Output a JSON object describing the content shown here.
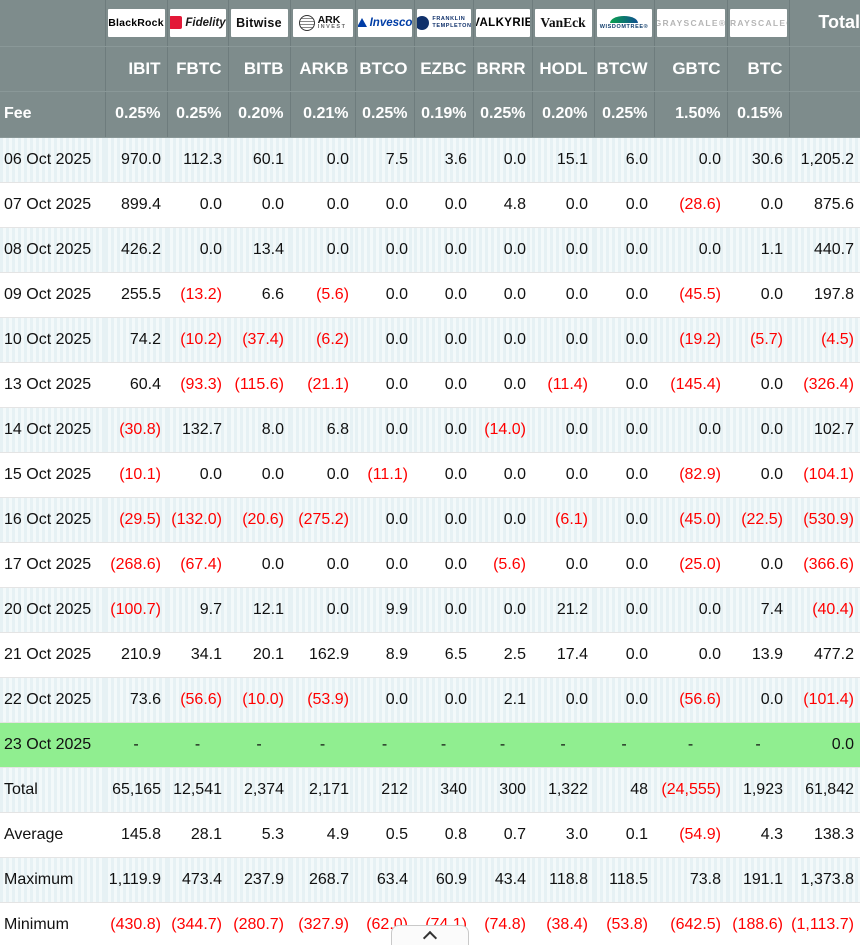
{
  "colors": {
    "header_bg": "#7e8c8c",
    "negative_text": "#ff0000",
    "highlight_row_bg": "#90ee90",
    "stripe_row_bg": "#e6f1f4"
  },
  "chart_data": {
    "type": "table",
    "total_label": "Total",
    "fee_label": "Fee",
    "providers": [
      {
        "name": "BlackRock",
        "style": "blackrock",
        "text": "BlackRock"
      },
      {
        "name": "Fidelity",
        "style": "fidelity",
        "text": "Fidelity"
      },
      {
        "name": "Bitwise",
        "style": "bitwise",
        "text": "Bitwise"
      },
      {
        "name": "ARK Invest",
        "style": "ark",
        "text": "ARK",
        "sub": "INVEST"
      },
      {
        "name": "Invesco",
        "style": "invesco",
        "text": "Invesco"
      },
      {
        "name": "Franklin Templeton",
        "style": "franklin",
        "text": "FRANKLIN TEMPLETON"
      },
      {
        "name": "Valkyrie",
        "style": "valkyrie",
        "text": "VALKYRIE"
      },
      {
        "name": "VanEck",
        "style": "vaneck",
        "text": "VanEck"
      },
      {
        "name": "WisdomTree",
        "style": "wisdomtree",
        "text": "WISDOMTREE®"
      },
      {
        "name": "Grayscale",
        "style": "grayscale",
        "text": "GRAYSCALE®"
      },
      {
        "name": "Grayscale BTC",
        "style": "grayscale",
        "text": "GRAYSCALE®"
      }
    ],
    "columns": [
      "IBIT",
      "FBTC",
      "BITB",
      "ARKB",
      "BTCO",
      "EZBC",
      "BRRR",
      "HODL",
      "BTCW",
      "GBTC",
      "BTC"
    ],
    "fees": [
      "0.25%",
      "0.25%",
      "0.20%",
      "0.21%",
      "0.25%",
      "0.19%",
      "0.25%",
      "0.20%",
      "0.25%",
      "1.50%",
      "0.15%"
    ],
    "rows": [
      {
        "label": "06 Oct 2025",
        "values": [
          "970.0",
          "112.3",
          "60.1",
          "0.0",
          "7.5",
          "3.6",
          "0.0",
          "15.1",
          "6.0",
          "0.0",
          "30.6"
        ],
        "total": "1,205.2"
      },
      {
        "label": "07 Oct 2025",
        "values": [
          "899.4",
          "0.0",
          "0.0",
          "0.0",
          "0.0",
          "0.0",
          "4.8",
          "0.0",
          "0.0",
          "(28.6)",
          "0.0"
        ],
        "total": "875.6"
      },
      {
        "label": "08 Oct 2025",
        "values": [
          "426.2",
          "0.0",
          "13.4",
          "0.0",
          "0.0",
          "0.0",
          "0.0",
          "0.0",
          "0.0",
          "0.0",
          "1.1"
        ],
        "total": "440.7"
      },
      {
        "label": "09 Oct 2025",
        "values": [
          "255.5",
          "(13.2)",
          "6.6",
          "(5.6)",
          "0.0",
          "0.0",
          "0.0",
          "0.0",
          "0.0",
          "(45.5)",
          "0.0"
        ],
        "total": "197.8"
      },
      {
        "label": "10 Oct 2025",
        "values": [
          "74.2",
          "(10.2)",
          "(37.4)",
          "(6.2)",
          "0.0",
          "0.0",
          "0.0",
          "0.0",
          "0.0",
          "(19.2)",
          "(5.7)"
        ],
        "total": "(4.5)"
      },
      {
        "label": "13 Oct 2025",
        "values": [
          "60.4",
          "(93.3)",
          "(115.6)",
          "(21.1)",
          "0.0",
          "0.0",
          "0.0",
          "(11.4)",
          "0.0",
          "(145.4)",
          "0.0"
        ],
        "total": "(326.4)"
      },
      {
        "label": "14 Oct 2025",
        "values": [
          "(30.8)",
          "132.7",
          "8.0",
          "6.8",
          "0.0",
          "0.0",
          "(14.0)",
          "0.0",
          "0.0",
          "0.0",
          "0.0"
        ],
        "total": "102.7"
      },
      {
        "label": "15 Oct 2025",
        "values": [
          "(10.1)",
          "0.0",
          "0.0",
          "0.0",
          "(11.1)",
          "0.0",
          "0.0",
          "0.0",
          "0.0",
          "(82.9)",
          "0.0"
        ],
        "total": "(104.1)"
      },
      {
        "label": "16 Oct 2025",
        "values": [
          "(29.5)",
          "(132.0)",
          "(20.6)",
          "(275.2)",
          "0.0",
          "0.0",
          "0.0",
          "(6.1)",
          "0.0",
          "(45.0)",
          "(22.5)"
        ],
        "total": "(530.9)"
      },
      {
        "label": "17 Oct 2025",
        "values": [
          "(268.6)",
          "(67.4)",
          "0.0",
          "0.0",
          "0.0",
          "0.0",
          "(5.6)",
          "0.0",
          "0.0",
          "(25.0)",
          "0.0"
        ],
        "total": "(366.6)"
      },
      {
        "label": "20 Oct 2025",
        "values": [
          "(100.7)",
          "9.7",
          "12.1",
          "0.0",
          "9.9",
          "0.0",
          "0.0",
          "21.2",
          "0.0",
          "0.0",
          "7.4"
        ],
        "total": "(40.4)"
      },
      {
        "label": "21 Oct 2025",
        "values": [
          "210.9",
          "34.1",
          "20.1",
          "162.9",
          "8.9",
          "6.5",
          "2.5",
          "17.4",
          "0.0",
          "0.0",
          "13.9"
        ],
        "total": "477.2"
      },
      {
        "label": "22 Oct 2025",
        "values": [
          "73.6",
          "(56.6)",
          "(10.0)",
          "(53.9)",
          "0.0",
          "0.0",
          "2.1",
          "0.0",
          "0.0",
          "(56.6)",
          "0.0"
        ],
        "total": "(101.4)"
      },
      {
        "label": "23 Oct 2025",
        "values": [
          "-",
          "-",
          "-",
          "-",
          "-",
          "-",
          "-",
          "-",
          "-",
          "-",
          "-"
        ],
        "total": "0.0",
        "highlight": true
      }
    ],
    "summary_rows": [
      {
        "label": "Total",
        "values": [
          "65,165",
          "12,541",
          "2,374",
          "2,171",
          "212",
          "340",
          "300",
          "1,322",
          "48",
          "(24,555)",
          "1,923"
        ],
        "total": "61,842"
      },
      {
        "label": "Average",
        "values": [
          "145.8",
          "28.1",
          "5.3",
          "4.9",
          "0.5",
          "0.8",
          "0.7",
          "3.0",
          "0.1",
          "(54.9)",
          "4.3"
        ],
        "total": "138.3"
      },
      {
        "label": "Maximum",
        "values": [
          "1,119.9",
          "473.4",
          "237.9",
          "268.7",
          "63.4",
          "60.9",
          "43.4",
          "118.8",
          "118.5",
          "73.8",
          "191.1"
        ],
        "total": "1,373.8"
      },
      {
        "label": "Minimum",
        "values": [
          "(430.8)",
          "(344.7)",
          "(280.7)",
          "(327.9)",
          "(62.0)",
          "(74.1)",
          "(74.8)",
          "(38.4)",
          "(53.8)",
          "(642.5)",
          "(188.6)"
        ],
        "total": "(1,113.7)"
      }
    ]
  }
}
